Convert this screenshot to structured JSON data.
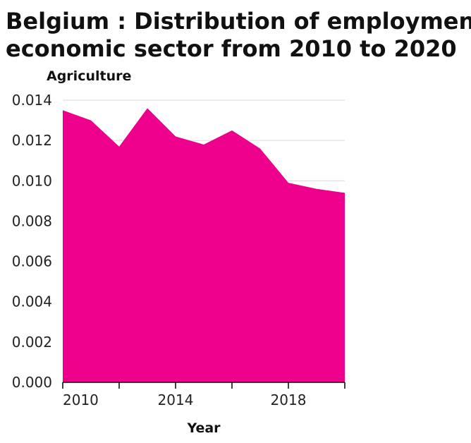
{
  "chart_data": {
    "type": "area",
    "title_lines": [
      "Belgium : Distribution of employment by",
      "economic sector from 2010 to 2020"
    ],
    "xlabel": "Year",
    "ylabel": "Agriculture",
    "x": [
      2010,
      2011,
      2012,
      2013,
      2014,
      2015,
      2016,
      2017,
      2018,
      2019,
      2020
    ],
    "series": [
      {
        "values": [
          0.0135,
          0.013,
          0.0117,
          0.0136,
          0.0122,
          0.0118,
          0.0125,
          0.0116,
          0.0099,
          0.0096,
          0.0094
        ],
        "color": "#ec008c"
      }
    ],
    "xlim": [
      2010,
      2020
    ],
    "ylim": [
      0,
      0.014
    ],
    "x_ticks": [
      2010,
      2012,
      2014,
      2016,
      2018,
      2020
    ],
    "x_tick_labels": [
      "2010",
      "",
      "2014",
      "",
      "2018",
      ""
    ],
    "y_ticks": [
      0,
      0.002,
      0.004,
      0.006,
      0.008,
      0.01,
      0.012,
      0.014
    ],
    "y_tick_labels": [
      "0.000",
      "0.002",
      "0.004",
      "0.006",
      "0.008",
      "0.010",
      "0.012",
      "0.014"
    ],
    "grid": true,
    "legend": "none"
  }
}
